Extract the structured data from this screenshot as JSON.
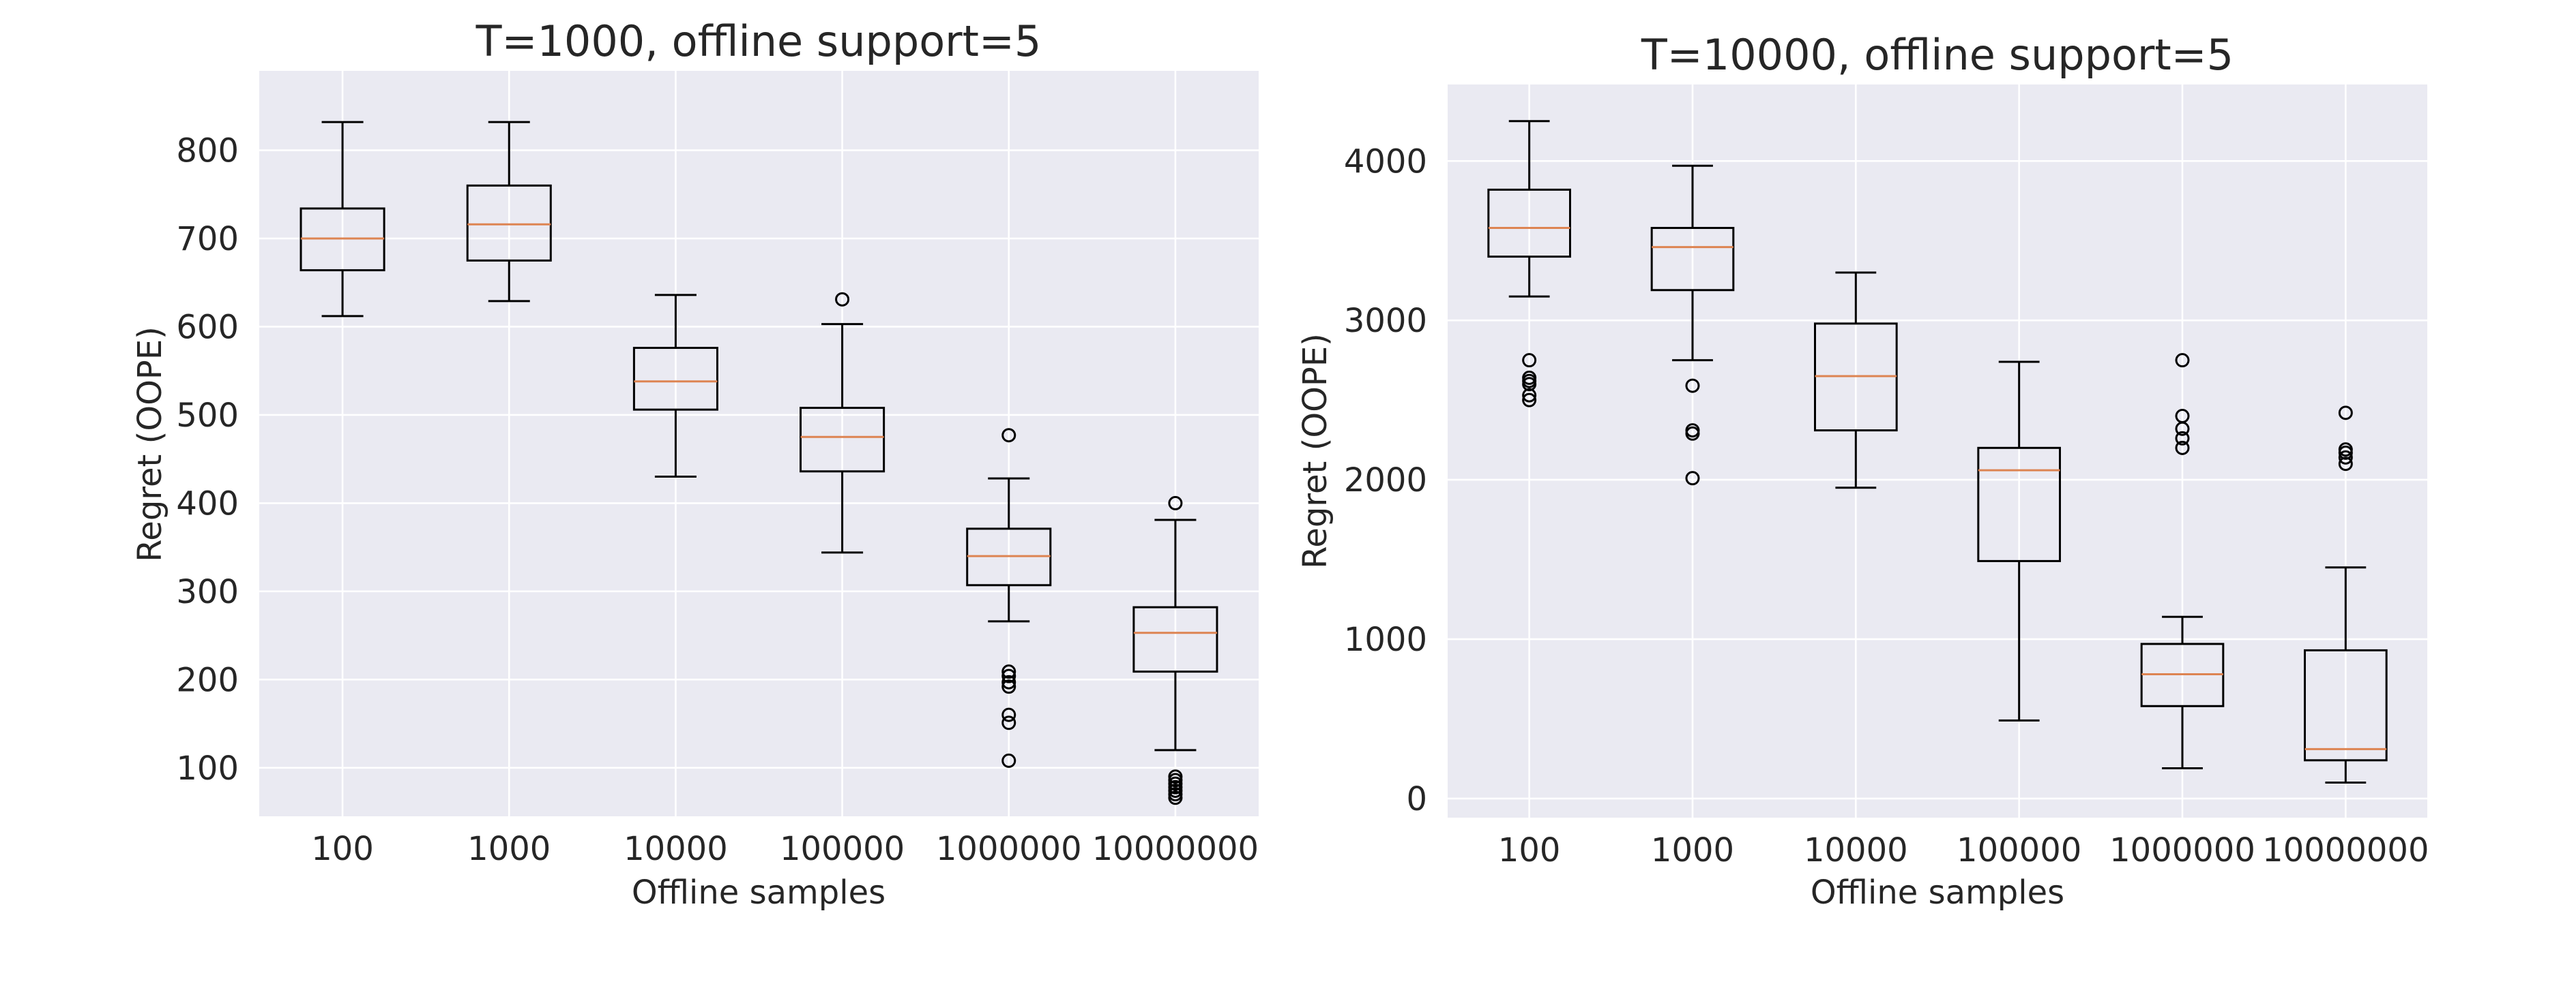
{
  "chart_data": [
    {
      "type": "box",
      "title": "T=1000, offline support=5",
      "xlabel": "Offline samples",
      "ylabel": "Regret (OOPE)",
      "ylim": [
        45,
        890
      ],
      "yticks": [
        100,
        200,
        300,
        400,
        500,
        600,
        700,
        800
      ],
      "grid": true,
      "categories": [
        "100",
        "1000",
        "10000",
        "100000",
        "1000000",
        "10000000"
      ],
      "boxes": [
        {
          "whislo": 612,
          "q1": 664,
          "med": 700,
          "q3": 734,
          "whishi": 832,
          "fliers": []
        },
        {
          "whislo": 629,
          "q1": 675,
          "med": 716,
          "q3": 760,
          "whishi": 832,
          "fliers": []
        },
        {
          "whislo": 430,
          "q1": 506,
          "med": 538,
          "q3": 576,
          "whishi": 636,
          "fliers": []
        },
        {
          "whislo": 344,
          "q1": 436,
          "med": 475,
          "q3": 508,
          "whishi": 603,
          "fliers": [
            631
          ]
        },
        {
          "whislo": 266,
          "q1": 307,
          "med": 340,
          "q3": 371,
          "whishi": 428,
          "fliers": [
            477,
            209,
            204,
            197,
            192,
            160,
            151,
            108
          ]
        },
        {
          "whislo": 120,
          "q1": 209,
          "med": 253,
          "q3": 282,
          "whishi": 381,
          "fliers": [
            400,
            90,
            86,
            82,
            78,
            74,
            70,
            66
          ]
        }
      ]
    },
    {
      "type": "box",
      "title": "T=10000, offline support=5",
      "xlabel": "Offline samples",
      "ylabel": "Regret (OOPE)",
      "ylim": [
        -120,
        4480
      ],
      "yticks": [
        0,
        1000,
        2000,
        3000,
        4000
      ],
      "grid": true,
      "categories": [
        "100",
        "1000",
        "10000",
        "100000",
        "1000000",
        "10000000"
      ],
      "boxes": [
        {
          "whislo": 3150,
          "q1": 3400,
          "med": 3580,
          "q3": 3820,
          "whishi": 4250,
          "fliers": [
            2750,
            2640,
            2620,
            2600,
            2530,
            2500
          ]
        },
        {
          "whislo": 2750,
          "q1": 3190,
          "med": 3460,
          "q3": 3580,
          "whishi": 3970,
          "fliers": [
            2590,
            2310,
            2290,
            2010
          ]
        },
        {
          "whislo": 1950,
          "q1": 2310,
          "med": 2650,
          "q3": 2980,
          "whishi": 3300,
          "fliers": []
        },
        {
          "whislo": 490,
          "q1": 1490,
          "med": 2060,
          "q3": 2200,
          "whishi": 2740,
          "fliers": []
        },
        {
          "whislo": 190,
          "q1": 580,
          "med": 780,
          "q3": 970,
          "whishi": 1140,
          "fliers": [
            2750,
            2400,
            2320,
            2260,
            2200
          ]
        },
        {
          "whislo": 100,
          "q1": 240,
          "med": 310,
          "q3": 930,
          "whishi": 1450,
          "fliers": [
            2420,
            2190,
            2170,
            2140,
            2100
          ]
        }
      ]
    }
  ]
}
